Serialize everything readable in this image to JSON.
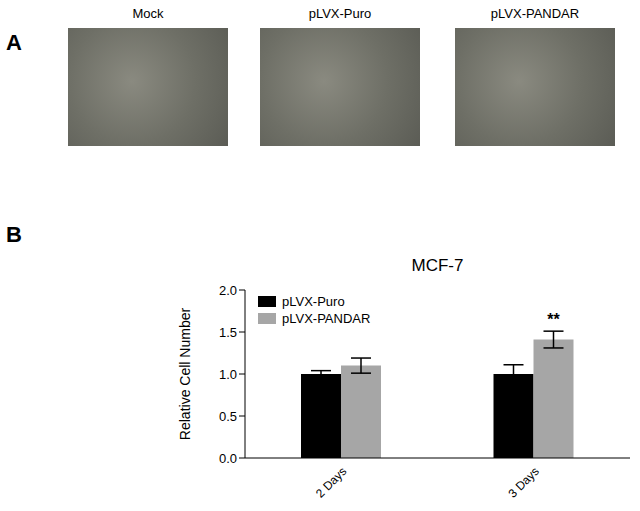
{
  "panel_a": {
    "label": "A",
    "images": [
      "Mock",
      "pLVX-Puro",
      "pLVX-PANDAR"
    ]
  },
  "panel_b_label": "B",
  "chart_data": {
    "type": "bar",
    "title": "MCF-7",
    "y_label": "Relative Cell Number",
    "categories": [
      "2 Days",
      "3 Days"
    ],
    "series": [
      {
        "name": "pLVX-Puro",
        "color": "#000000",
        "values": [
          1.0,
          1.0
        ],
        "errors": [
          0.04,
          0.11
        ]
      },
      {
        "name": "pLVX-PANDAR",
        "color": "#a6a6a6",
        "values": [
          1.1,
          1.41
        ],
        "errors": [
          0.09,
          0.1
        ]
      }
    ],
    "ylim": [
      0,
      2
    ],
    "yticks": [
      {
        "value": 0,
        "label": "0.0"
      },
      {
        "value": 0.5,
        "label": "0.5"
      },
      {
        "value": 1,
        "label": "1.0"
      },
      {
        "value": 1.5,
        "label": "1.5"
      },
      {
        "value": 2,
        "label": "2.0"
      }
    ],
    "legend": "upper left",
    "annotations": [
      {
        "text": "**",
        "category": "3 Days",
        "series": "pLVX-PANDAR"
      }
    ]
  }
}
